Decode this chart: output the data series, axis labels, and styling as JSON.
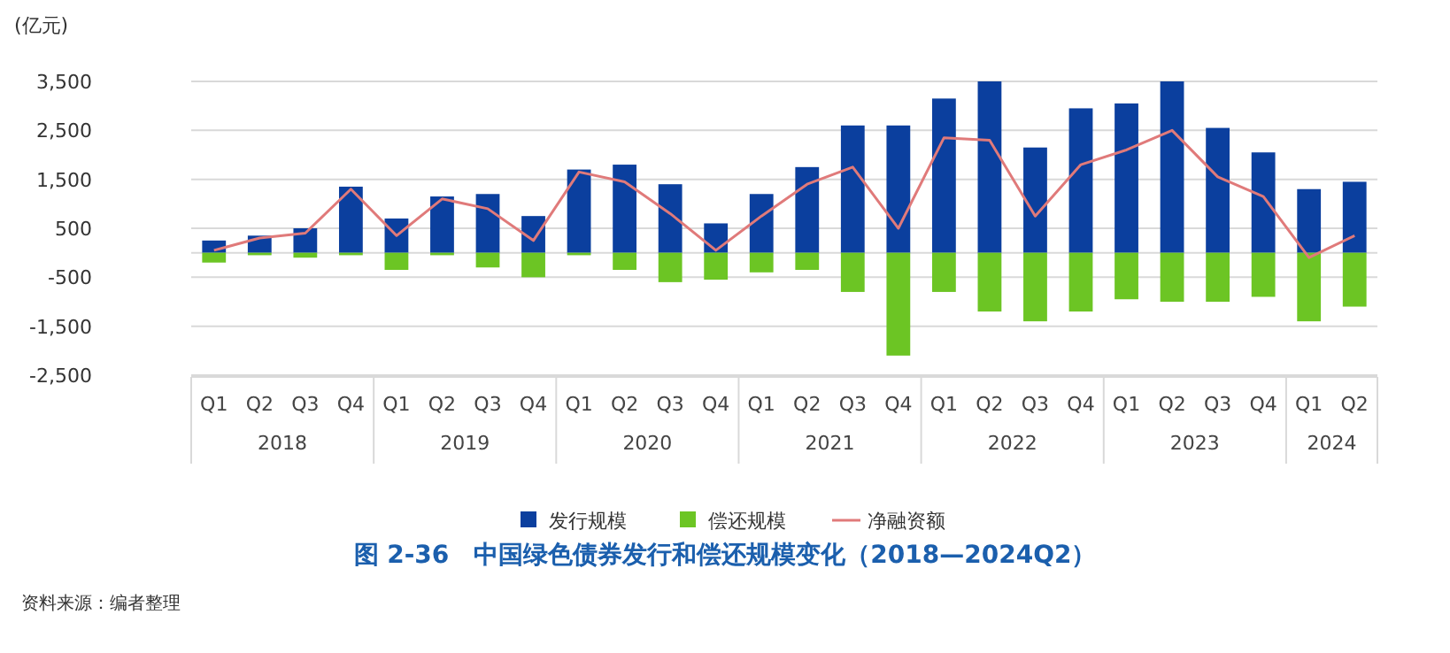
{
  "chart_data": {
    "type": "bar",
    "title": "图 2-36　中国绿色债券发行和偿还规模变化（2018—2024Q2）",
    "ylabel": "(亿元)",
    "categories": [
      "Q1",
      "Q2",
      "Q3",
      "Q4",
      "Q1",
      "Q2",
      "Q3",
      "Q4",
      "Q1",
      "Q2",
      "Q3",
      "Q4",
      "Q1",
      "Q2",
      "Q3",
      "Q4",
      "Q1",
      "Q2",
      "Q3",
      "Q4",
      "Q1",
      "Q2",
      "Q3",
      "Q4",
      "Q1",
      "Q2"
    ],
    "series": [
      {
        "name": "发行规模",
        "color": "#0b3f9e",
        "values": [
          250,
          350,
          500,
          1350,
          700,
          1150,
          1200,
          750,
          1700,
          1800,
          1400,
          600,
          1200,
          1750,
          2600,
          2600,
          3150,
          3500,
          2150,
          2950,
          3050,
          3500,
          2550,
          2050,
          1300,
          1450
        ]
      },
      {
        "name": "偿还规模",
        "color": "#6cc524",
        "values": [
          -200,
          -50,
          -100,
          -50,
          -350,
          -50,
          -300,
          -500,
          -50,
          -350,
          -600,
          -550,
          -400,
          -350,
          -800,
          -2100,
          -800,
          -1200,
          -1400,
          -1200,
          -950,
          -1000,
          -1000,
          -900,
          -1400,
          -1100
        ]
      },
      {
        "name": "净融资额",
        "type": "line",
        "color": "#e07a7a",
        "values": [
          50,
          300,
          400,
          1300,
          350,
          1100,
          900,
          250,
          1650,
          1450,
          800,
          50,
          750,
          1400,
          1750,
          500,
          2350,
          2300,
          750,
          1800,
          2100,
          2500,
          1550,
          1150,
          -100,
          350
        ]
      }
    ],
    "ylim": [
      -2500,
      3500
    ],
    "yticks": [
      {
        "value": 3500,
        "label": "3,500"
      },
      {
        "value": 2500,
        "label": "2,500"
      },
      {
        "value": 1500,
        "label": "1,500"
      },
      500,
      -500,
      {
        "value": -1500,
        "label": "-1,500"
      },
      {
        "value": -2500,
        "label": "-2,500"
      }
    ],
    "stacked": true,
    "grid": "y",
    "legend": "bottom",
    "marker": "none",
    "annotations": [
      "2018",
      "2019",
      "2020",
      "2021",
      "2022",
      "2023",
      "2024",
      "资料来源：编者整理"
    ]
  }
}
